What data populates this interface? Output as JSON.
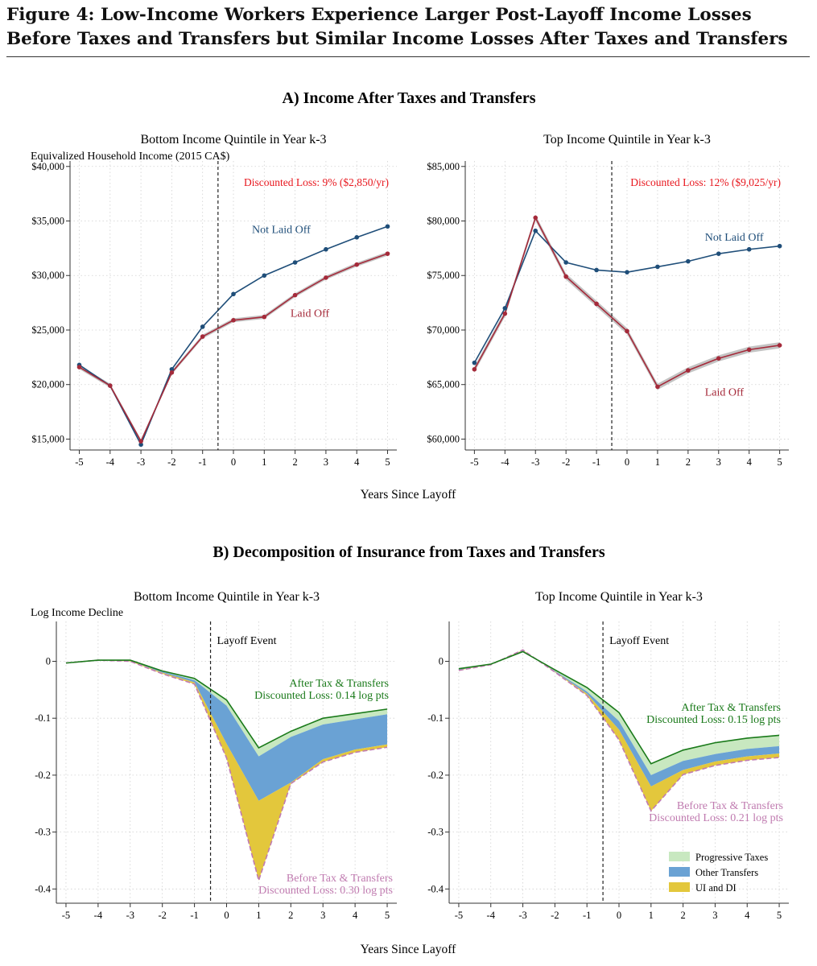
{
  "figure": {
    "title": "Figure 4: Low-Income Workers Experience Larger Post-Layoff Income Losses Before Taxes and Transfers but Similar Income Losses After Taxes and Transfers"
  },
  "panel_a": {
    "heading": "A) Income After Taxes and Transfers",
    "xlabel": "Years Since Layoff"
  },
  "panel_b": {
    "heading": "B) Decomposition of Insurance from Taxes and Transfers",
    "xlabel": "Years Since Layoff"
  },
  "colors": {
    "not_laid_off": "#1f4e79",
    "laid_off": "#a52a3a",
    "ci_band": "#b8b8b8",
    "discount_label": "#e8171e",
    "after_tax": "#1a7a1a",
    "before_tax": "#c07bb0",
    "progressive_taxes": "#c8e8c0",
    "other_transfers": "#6aa2d4",
    "ui_di": "#e3c73c",
    "grid": "#d0d0d0"
  },
  "chart_data": [
    {
      "id": "a-left",
      "type": "line",
      "title": "Bottom Income Quintile in Year k-3",
      "ylabel": "Equivalized Household Income (2015 CA$)",
      "x": [
        -5,
        -4,
        -3,
        -2,
        -1,
        0,
        1,
        2,
        3,
        4,
        5
      ],
      "xticks": [
        "-5",
        "-4",
        "-3",
        "-2",
        "-1",
        "0",
        "1",
        "2",
        "3",
        "4",
        "5"
      ],
      "xlim": [
        -5.3,
        5.3
      ],
      "ylim": [
        14000,
        40500
      ],
      "yticks": [
        15000,
        20000,
        25000,
        30000,
        35000,
        40000
      ],
      "ytick_labels": [
        "$15,000",
        "$20,000",
        "$25,000",
        "$30,000",
        "$35,000",
        "$40,000"
      ],
      "vline": -0.5,
      "annotation": "Discounted Loss: 9% ($2,850/yr)",
      "series": [
        {
          "name": "Not Laid Off",
          "values": [
            21800,
            19900,
            14500,
            21400,
            25300,
            28300,
            30000,
            31200,
            32400,
            33500,
            34500
          ],
          "label_at": [
            0.6,
            33900
          ]
        },
        {
          "name": "Laid Off",
          "values": [
            21600,
            19900,
            14800,
            21100,
            24400,
            25900,
            26200,
            28200,
            29800,
            31000,
            32000
          ],
          "ci": 180,
          "label_at": [
            1.85,
            26200
          ]
        }
      ]
    },
    {
      "id": "a-right",
      "type": "line",
      "title": "Top Income Quintile in Year k-3",
      "ylabel": "",
      "x": [
        -5,
        -4,
        -3,
        -2,
        -1,
        0,
        1,
        2,
        3,
        4,
        5
      ],
      "xticks": [
        "-5",
        "-4",
        "-3",
        "-2",
        "-1",
        "0",
        "1",
        "2",
        "3",
        "4",
        "5"
      ],
      "xlim": [
        -5.3,
        5.3
      ],
      "ylim": [
        59000,
        85500
      ],
      "yticks": [
        60000,
        65000,
        70000,
        75000,
        80000,
        85000
      ],
      "ytick_labels": [
        "$60,000",
        "$65,000",
        "$70,000",
        "$75,000",
        "$80,000",
        "$85,000"
      ],
      "vline": -0.5,
      "annotation": "Discounted Loss: 12% ($9,025/yr)",
      "series": [
        {
          "name": "Not Laid Off",
          "values": [
            67000,
            72000,
            79100,
            76200,
            75500,
            75300,
            75800,
            76300,
            77000,
            77400,
            77700
          ],
          "label_at": [
            2.55,
            78200
          ]
        },
        {
          "name": "Laid Off",
          "values": [
            66400,
            71500,
            80300,
            74900,
            72400,
            69900,
            64800,
            66300,
            67400,
            68200,
            68600
          ],
          "ci": 280,
          "label_at": [
            2.55,
            64000
          ]
        }
      ]
    },
    {
      "id": "b-left",
      "type": "area",
      "title": "Bottom Income Quintile in Year k-3",
      "ylabel": "Log Income Decline",
      "x": [
        -5,
        -4,
        -3,
        -2,
        -1,
        0,
        1,
        2,
        3,
        4,
        5
      ],
      "xticks": [
        "-5",
        "-4",
        "-3",
        "-2",
        "-1",
        "0",
        "1",
        "2",
        "3",
        "4",
        "5"
      ],
      "xlim": [
        -5.3,
        5.3
      ],
      "ylim": [
        -0.425,
        0.07
      ],
      "yticks": [
        0,
        -0.1,
        -0.2,
        -0.3,
        -0.4
      ],
      "ytick_labels": [
        "0",
        "-0.1",
        "-0.2",
        "-0.3",
        "-0.4"
      ],
      "vline": -0.5,
      "vline_label": "Layoff Event",
      "series": [
        {
          "name": "After Tax & Transfers",
          "values": [
            -0.003,
            0.002,
            0.002,
            -0.017,
            -0.03,
            -0.068,
            -0.152,
            -0.123,
            -0.1,
            -0.092,
            -0.084
          ]
        },
        {
          "name": "Progressive Taxes boundary",
          "values": [
            -0.003,
            0.002,
            0.002,
            -0.018,
            -0.033,
            -0.078,
            -0.167,
            -0.133,
            -0.111,
            -0.102,
            -0.093
          ]
        },
        {
          "name": "Other Transfers boundary",
          "values": [
            -0.003,
            0.002,
            0.001,
            -0.02,
            -0.037,
            -0.145,
            -0.245,
            -0.213,
            -0.172,
            -0.155,
            -0.146
          ]
        },
        {
          "name": "Before Tax & Transfers",
          "values": [
            -0.003,
            0.002,
            0.0,
            -0.022,
            -0.04,
            -0.17,
            -0.385,
            -0.215,
            -0.177,
            -0.16,
            -0.151
          ]
        }
      ],
      "annotations": {
        "after_title": "After Tax & Transfers",
        "after_loss": "Discounted Loss: 0.14 log pts",
        "before_title": "Before Tax & Transfers",
        "before_loss": "Discounted Loss: 0.30 log pts"
      }
    },
    {
      "id": "b-right",
      "type": "area",
      "title": "Top Income Quintile in Year k-3",
      "ylabel": "",
      "x": [
        -5,
        -4,
        -3,
        -2,
        -1,
        0,
        1,
        2,
        3,
        4,
        5
      ],
      "xticks": [
        "-5",
        "-4",
        "-3",
        "-2",
        "-1",
        "0",
        "1",
        "2",
        "3",
        "4",
        "5"
      ],
      "xlim": [
        -5.3,
        5.3
      ],
      "ylim": [
        -0.425,
        0.07
      ],
      "yticks": [
        0,
        -0.1,
        -0.2,
        -0.3,
        -0.4
      ],
      "ytick_labels": [
        "0",
        "-0.1",
        "-0.2",
        "-0.3",
        "-0.4"
      ],
      "vline": -0.5,
      "vline_label": "Layoff Event",
      "series": [
        {
          "name": "After Tax & Transfers",
          "values": [
            -0.013,
            -0.005,
            0.017,
            -0.015,
            -0.046,
            -0.09,
            -0.18,
            -0.156,
            -0.143,
            -0.135,
            -0.13
          ]
        },
        {
          "name": "Progressive Taxes boundary",
          "values": [
            -0.014,
            -0.006,
            0.018,
            -0.017,
            -0.053,
            -0.105,
            -0.2,
            -0.175,
            -0.163,
            -0.154,
            -0.149
          ]
        },
        {
          "name": "Other Transfers boundary",
          "values": [
            -0.015,
            -0.006,
            0.019,
            -0.018,
            -0.057,
            -0.12,
            -0.22,
            -0.191,
            -0.176,
            -0.167,
            -0.162
          ]
        },
        {
          "name": "Before Tax & Transfers",
          "values": [
            -0.016,
            -0.006,
            0.02,
            -0.019,
            -0.06,
            -0.138,
            -0.263,
            -0.199,
            -0.183,
            -0.174,
            -0.169
          ]
        }
      ],
      "annotations": {
        "after_title": "After Tax & Transfers",
        "after_loss": "Discounted Loss: 0.15 log pts",
        "before_title": "Before Tax & Transfers",
        "before_loss": "Discounted Loss: 0.21 log pts"
      },
      "legend": [
        "Progressive Taxes",
        "Other Transfers",
        "UI and DI"
      ],
      "legend_position": "bottom-right"
    }
  ]
}
